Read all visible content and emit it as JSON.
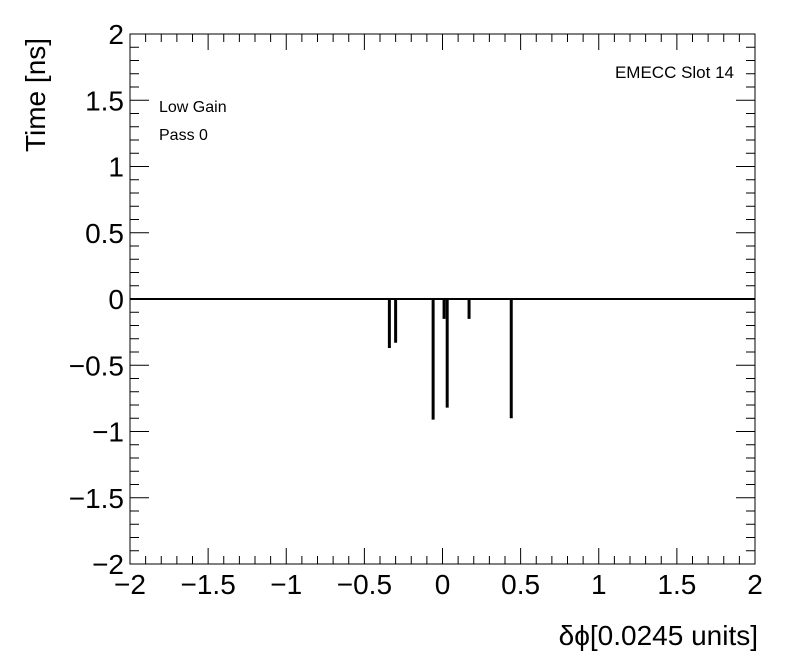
{
  "chart_data": {
    "type": "bar",
    "title": "",
    "xlabel": "δϕ[0.0245 units]",
    "ylabel": "Time [ns]",
    "xlim": [
      -2,
      2
    ],
    "ylim": [
      -2,
      2
    ],
    "x_ticks": [
      "−2",
      "−1.5",
      "−1",
      "−0.5",
      "0",
      "0.5",
      "1",
      "1.5",
      "2"
    ],
    "y_ticks": [
      "−2",
      "−1.5",
      "−1",
      "−0.5",
      "0",
      "0.5",
      "1",
      "1.5",
      "2"
    ],
    "x_tick_values": [
      -2,
      -1.5,
      -1,
      -0.5,
      0,
      0.5,
      1,
      1.5,
      2
    ],
    "y_tick_values": [
      -2,
      -1.5,
      -1,
      -0.5,
      0,
      0.5,
      1,
      1.5,
      2
    ],
    "annotations": {
      "slot": "EMECC Slot 14",
      "gain": "Low Gain",
      "pass": "Pass 0"
    },
    "bars": [
      {
        "x": -0.34,
        "y": -0.37
      },
      {
        "x": -0.3,
        "y": -0.33
      },
      {
        "x": -0.06,
        "y": -0.91
      },
      {
        "x": 0.01,
        "y": -0.15
      },
      {
        "x": 0.03,
        "y": -0.82
      },
      {
        "x": 0.17,
        "y": -0.15
      },
      {
        "x": 0.44,
        "y": -0.9
      }
    ],
    "grid": false,
    "color": "#000000"
  }
}
